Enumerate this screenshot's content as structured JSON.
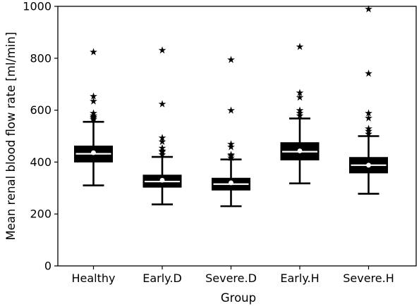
{
  "chart_data": {
    "type": "box",
    "xlabel": "Group",
    "ylabel": "Mean renal blood flow rate [ml/min]",
    "ylim": [
      0,
      1000
    ],
    "yticks": [
      0,
      200,
      400,
      600,
      800,
      1000
    ],
    "categories": [
      "Healthy",
      "Early.D",
      "Severe.D",
      "Early.H",
      "Severe.H"
    ],
    "boxes": [
      {
        "name": "Healthy",
        "whisker_low": 310,
        "q1": 400,
        "median": 432,
        "q3": 462,
        "whisker_high": 555,
        "mean": 436,
        "outliers": [
          565,
          570,
          575,
          580,
          590,
          635,
          655,
          825
        ]
      },
      {
        "name": "Early.D",
        "whisker_low": 237,
        "q1": 303,
        "median": 325,
        "q3": 350,
        "whisker_high": 420,
        "mean": 330,
        "outliers": [
          430,
          440,
          445,
          455,
          480,
          495,
          625,
          832
        ]
      },
      {
        "name": "Severe.D",
        "whisker_low": 230,
        "q1": 292,
        "median": 315,
        "q3": 338,
        "whisker_high": 410,
        "mean": 320,
        "outliers": [
          418,
          425,
          430,
          460,
          470,
          600,
          795
        ]
      },
      {
        "name": "Early.H",
        "whisker_low": 318,
        "q1": 408,
        "median": 440,
        "q3": 475,
        "whisker_high": 568,
        "mean": 443,
        "outliers": [
          580,
          590,
          600,
          650,
          668,
          845
        ]
      },
      {
        "name": "Severe.H",
        "whisker_low": 278,
        "q1": 358,
        "median": 388,
        "q3": 418,
        "whisker_high": 500,
        "mean": 388,
        "outliers": [
          510,
          520,
          530,
          570,
          590,
          742,
          990
        ]
      }
    ],
    "colors": {
      "box": "#000000",
      "median": "#ffffff",
      "mean": "#ffffff",
      "outlier": "#000000"
    },
    "outlier_marker": "star",
    "mean_marker": "white-dot",
    "grid": false,
    "legend": "none"
  }
}
